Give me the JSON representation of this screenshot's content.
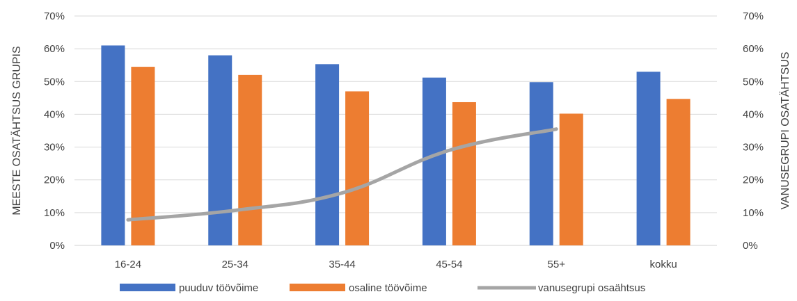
{
  "chart_data": {
    "type": "bar",
    "categories": [
      "16-24",
      "25-34",
      "35-44",
      "45-54",
      "55+",
      "kokku"
    ],
    "series": [
      {
        "name": "puuduv töövõime",
        "kind": "bar",
        "color": "#4472C4",
        "values": [
          0.61,
          0.58,
          0.553,
          0.512,
          0.498,
          0.53
        ]
      },
      {
        "name": "osaline töövõime",
        "kind": "bar",
        "color": "#ED7D31",
        "values": [
          0.545,
          0.52,
          0.47,
          0.437,
          0.402,
          0.447
        ]
      },
      {
        "name": "vanusegrupi osaähtsus",
        "kind": "line",
        "color": "#A5A5A5",
        "values": [
          0.078,
          0.107,
          0.16,
          0.29,
          0.355,
          null
        ]
      }
    ],
    "ylabel": "MEESTE OSATÄHTSUS GRUPIS",
    "y2label": "VANUSEGRUPI OSATÄHTSUS",
    "ylim": [
      0,
      0.7
    ],
    "y2lim": [
      0,
      0.7
    ],
    "yticks": [
      "0%",
      "10%",
      "20%",
      "30%",
      "40%",
      "50%",
      "60%",
      "70%"
    ],
    "y2ticks": [
      "0%",
      "10%",
      "20%",
      "30%",
      "40%",
      "50%",
      "60%",
      "70%"
    ],
    "grid": true,
    "legend_position": "bottom"
  }
}
